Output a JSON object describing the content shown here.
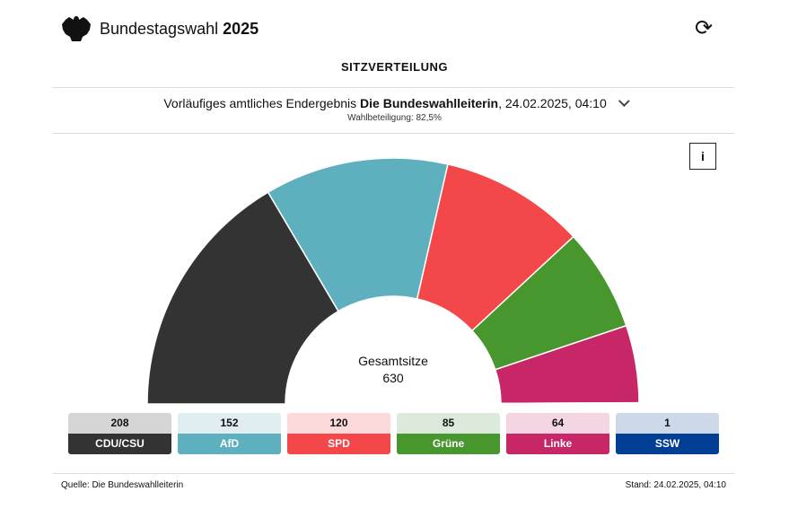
{
  "header": {
    "title": "Bundestagswahl",
    "year": "2025"
  },
  "section_title": "SITZVERTEILUNG",
  "result": {
    "prefix": "Vorläufiges amtliches Endergebnis",
    "source": "Die Bundeswahlleiterin",
    "date": ", 24.02.2025, 04:10",
    "turnout": "Wahlbeteiligung: 82,5%"
  },
  "info_label": "i",
  "total": {
    "label": "Gesamtsitze",
    "value": "630"
  },
  "footer": {
    "source": "Quelle: Die Bundeswahlleiterin",
    "stand": "Stand: 24.02.2025, 04:10"
  },
  "chart_data": {
    "type": "pie",
    "subtype": "semicircle-parliament",
    "title": "SITZVERTEILUNG",
    "total": 630,
    "categories": [
      "CDU/CSU",
      "AfD",
      "SPD",
      "Grüne",
      "Linke",
      "SSW"
    ],
    "values": [
      208,
      152,
      120,
      85,
      64,
      1
    ],
    "colors": [
      "#333333",
      "#5fb0bf",
      "#f4474a",
      "#47962e",
      "#c72767",
      "#003f93"
    ],
    "light_colors": [
      "#d6d6d6",
      "#e0eef2",
      "#fcdada",
      "#dceadb",
      "#f4d5e2",
      "#cdd8e8"
    ]
  }
}
